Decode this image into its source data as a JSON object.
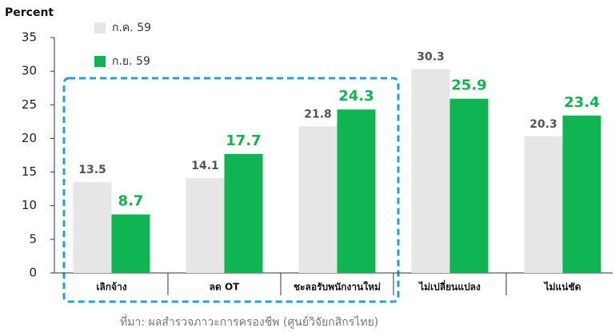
{
  "chart_data": {
    "type": "bar",
    "y_label": "Percent",
    "categories": [
      "เลิกจ้าง",
      "ลด OT",
      "ชะลอรับพนักงานใหม่",
      "ไม่เปลี่ยนแปลง",
      "ไม่แน่ชัด"
    ],
    "series": [
      {
        "name": "ก.ค. 59",
        "color": "#e6e6e6",
        "values": [
          13.5,
          14.1,
          21.8,
          30.3,
          20.3
        ]
      },
      {
        "name": "ก.ย. 59",
        "color": "#10b553",
        "values": [
          8.7,
          17.7,
          24.3,
          25.9,
          23.4
        ]
      }
    ],
    "ylim": [
      0,
      35
    ],
    "yticks": [
      0,
      5,
      10,
      15,
      20,
      25,
      30,
      35
    ],
    "grid": false,
    "source": "ที่มา: ผลสำรวจภาวะการครองชีพ (ศูนย์วิจัยกสิกรไทย)"
  }
}
